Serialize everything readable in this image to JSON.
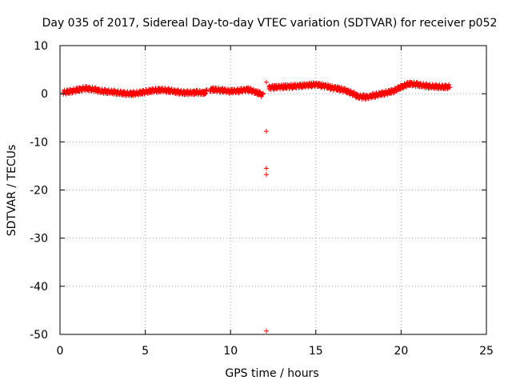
{
  "chart_data": {
    "type": "scatter",
    "title": "Day 035 of 2017, Sidereal Day-to-day VTEC variation (SDTVAR) for receiver p052",
    "xlabel": "GPS time / hours",
    "ylabel": "SDTVAR / TECUs",
    "xlim": [
      0,
      25
    ],
    "ylim": [
      -50,
      10
    ],
    "xticks": [
      0,
      5,
      10,
      15,
      20,
      25
    ],
    "yticks": [
      10,
      0,
      -10,
      -20,
      -30,
      -40,
      -50
    ],
    "xtick_labels": [
      "0",
      "5",
      "10",
      "15",
      "20",
      "25"
    ],
    "ytick_labels": [
      "10",
      "0",
      "-10",
      "-20",
      "-30",
      "-40",
      "-50"
    ],
    "grid": true,
    "marker": "plus",
    "color": "#ff0000",
    "series": [
      {
        "name": "SDTVAR",
        "trend": {
          "x": [
            0.2,
            0.5,
            1.0,
            1.5,
            2.0,
            2.5,
            3.0,
            3.5,
            4.0,
            4.5,
            5.0,
            5.5,
            6.0,
            6.5,
            7.0,
            7.5,
            8.0,
            8.5,
            8.8,
            9.5,
            10.0,
            10.5,
            11.0,
            11.5,
            11.9,
            12.3,
            13.0,
            14.0,
            15.0,
            15.5,
            16.0,
            16.5,
            17.0,
            17.5,
            18.0,
            18.5,
            19.0,
            19.5,
            20.0,
            20.5,
            21.0,
            21.5,
            22.0,
            22.5,
            22.9
          ],
          "y": [
            0.3,
            0.4,
            0.8,
            1.1,
            0.9,
            0.5,
            0.4,
            0.2,
            0.0,
            0.1,
            0.4,
            0.7,
            0.8,
            0.6,
            0.3,
            0.2,
            0.3,
            0.2,
            0.9,
            0.7,
            0.5,
            0.6,
            0.9,
            0.3,
            -0.3,
            1.3,
            1.4,
            1.6,
            1.9,
            1.6,
            1.2,
            0.9,
            0.3,
            -0.6,
            -0.7,
            -0.3,
            0.1,
            0.5,
            1.4,
            2.1,
            1.9,
            1.6,
            1.5,
            1.4,
            1.5
          ]
        },
        "outliers": [
          {
            "x": 12.1,
            "y": 2.4
          },
          {
            "x": 12.1,
            "y": -7.8
          },
          {
            "x": 12.1,
            "y": -15.5
          },
          {
            "x": 12.1,
            "y": -16.8
          },
          {
            "x": 12.1,
            "y": -49.3
          }
        ]
      }
    ]
  }
}
